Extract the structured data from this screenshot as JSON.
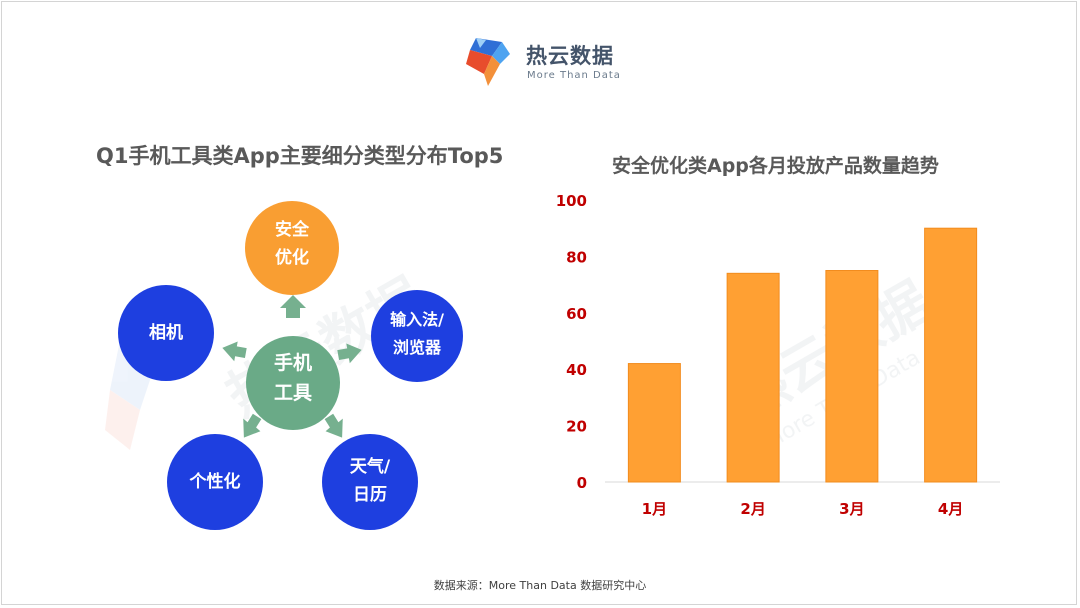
{
  "logo": {
    "name_cn": "热云数据",
    "name_en": "More Than Data"
  },
  "diagram": {
    "title": "Q1手机工具类App主要细分类型分布Top5",
    "center": {
      "line1": "手机",
      "line2": "工具",
      "color": "#6aaa87"
    },
    "nodes": [
      {
        "line1": "安全",
        "line2": "优化",
        "color": "#f99e32"
      },
      {
        "line1": "输入法/",
        "line2": "浏览器",
        "color": "#1e3fe0"
      },
      {
        "line1": "天气/",
        "line2": "日历",
        "color": "#1e3fe0"
      },
      {
        "line1": "个性化",
        "line2": "",
        "color": "#1e3fe0"
      },
      {
        "line1": "相机",
        "line2": "",
        "color": "#1e3fe0"
      }
    ],
    "arrow_color": "#76b08f",
    "watermark": "热云数据"
  },
  "chart_data": {
    "type": "bar",
    "title": "安全优化类App各月投放产品数量趋势",
    "categories": [
      "1月",
      "2月",
      "3月",
      "4月"
    ],
    "values": [
      42,
      74,
      75,
      90
    ],
    "ylim": [
      0,
      100
    ],
    "yticks": [
      0,
      20,
      40,
      60,
      80,
      100
    ],
    "bar_color": "#ffa033",
    "tick_color": "#c00000",
    "grid": false,
    "watermark": "热云数据",
    "watermark_en": "More Than Data"
  },
  "footer": {
    "text": "数据来源：More Than Data 数据研究中心"
  }
}
